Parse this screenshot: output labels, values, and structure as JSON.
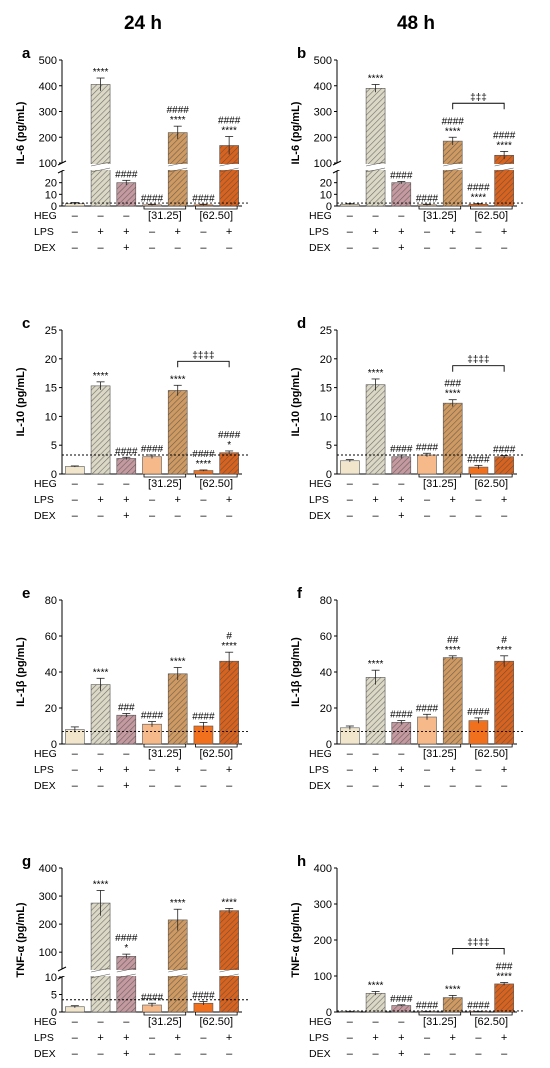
{
  "figure": {
    "col_titles": [
      "24 h",
      "48 h"
    ],
    "row_labels": [
      "HEG",
      "LPS",
      "DEX"
    ],
    "groups": {
      "HEG": [
        "–",
        "–",
        "–",
        "[31.25]",
        "[31.25]",
        "[62.50]",
        "[62.50]"
      ],
      "LPS": [
        "–",
        "+",
        "+",
        "–",
        "+",
        "–",
        "+"
      ],
      "DEX": [
        "–",
        "–",
        "+",
        "–",
        "–",
        "–",
        "–"
      ]
    },
    "heg_labels": [
      "[31.25]",
      "[62.50]"
    ],
    "colors": {
      "ctrl": "#f1e6cc",
      "lps": "#dcd8c6",
      "dex": "#c49aa0",
      "heg31": "#f5b98a",
      "heg31lps": "#cf9a62",
      "heg62": "#f0701e",
      "heg62lps": "#d8631f"
    }
  },
  "chart_data": [
    {
      "panel": "a",
      "type": "bar",
      "ylabel": "IL-6 (pg/mL)",
      "values": [
        2,
        405,
        20,
        1,
        218,
        1,
        168
      ],
      "errors": [
        1,
        25,
        2,
        0.5,
        25,
        0.5,
        35
      ],
      "broken_axis": true,
      "lower_ylim": [
        0,
        30
      ],
      "upper_ylim": [
        100,
        500
      ],
      "lower_ticks": [
        0,
        10,
        20
      ],
      "upper_ticks": [
        100,
        200,
        300,
        400,
        500
      ],
      "reference_line": 2.5,
      "sig": [
        [],
        [
          "****"
        ],
        [
          "####"
        ],
        [
          "####"
        ],
        [
          "####",
          "****"
        ],
        [
          "####"
        ],
        [
          "####",
          "****"
        ]
      ],
      "bracket": null
    },
    {
      "panel": "b",
      "type": "bar",
      "ylabel": "IL-6 (pg/mL)",
      "values": [
        1.5,
        390,
        20,
        1,
        185,
        1.5,
        130
      ],
      "errors": [
        0.5,
        15,
        1,
        0.5,
        15,
        0.5,
        15
      ],
      "broken_axis": true,
      "lower_ylim": [
        0,
        30
      ],
      "upper_ylim": [
        100,
        500
      ],
      "lower_ticks": [
        0,
        10,
        20
      ],
      "upper_ticks": [
        100,
        200,
        300,
        400,
        500
      ],
      "reference_line": 2.5,
      "sig": [
        [],
        [
          "****"
        ],
        [
          "####"
        ],
        [
          "####"
        ],
        [
          "####",
          "****"
        ],
        [
          "####",
          "****"
        ],
        [
          "####",
          "****"
        ]
      ],
      "bracket": {
        "from": 4,
        "to": 6,
        "label": "‡‡‡"
      }
    },
    {
      "panel": "c",
      "type": "bar",
      "ylabel": "IL-10 (pg/mL)",
      "values": [
        1.3,
        15.3,
        2.7,
        3.0,
        14.5,
        0.6,
        3.7
      ],
      "errors": [
        0.1,
        0.7,
        0.2,
        0.3,
        0.9,
        0.1,
        0.3
      ],
      "ylim": [
        0,
        25
      ],
      "ticks": [
        0,
        5,
        10,
        15,
        20,
        25
      ],
      "reference_line": 3.3,
      "sig": [
        [],
        [
          "****"
        ],
        [
          "####"
        ],
        [
          "####"
        ],
        [
          "****"
        ],
        [
          "####",
          "****"
        ],
        [
          "####",
          "*"
        ]
      ],
      "bracket": {
        "from": 4,
        "to": 6,
        "label": "‡‡‡‡"
      }
    },
    {
      "panel": "d",
      "type": "bar",
      "ylabel": "IL-10 (pg/mL)",
      "values": [
        2.3,
        15.5,
        3.0,
        3.3,
        12.3,
        1.2,
        3.0
      ],
      "errors": [
        0.2,
        1.0,
        0.3,
        0.3,
        0.6,
        0.3,
        0.2
      ],
      "ylim": [
        0,
        25
      ],
      "ticks": [
        0,
        5,
        10,
        15,
        20,
        25
      ],
      "reference_line": 3.3,
      "sig": [
        [],
        [
          "****"
        ],
        [
          "####"
        ],
        [
          "####"
        ],
        [
          "###",
          "****"
        ],
        [
          "####"
        ],
        [
          "####"
        ]
      ],
      "bracket": {
        "from": 4,
        "to": 6,
        "label": "‡‡‡‡"
      }
    },
    {
      "panel": "e",
      "type": "bar",
      "ylabel": "IL-1β (pg/mL)",
      "values": [
        8,
        33,
        16,
        11,
        39,
        10,
        46
      ],
      "errors": [
        1.5,
        3.5,
        1,
        1.5,
        3.5,
        2,
        5
      ],
      "ylim": [
        0,
        80
      ],
      "ticks": [
        0,
        20,
        40,
        60,
        80
      ],
      "reference_line": 7,
      "sig": [
        [],
        [
          "****"
        ],
        [
          "###"
        ],
        [
          "####"
        ],
        [
          "****"
        ],
        [
          "####"
        ],
        [
          "#",
          "****"
        ]
      ],
      "bracket": null
    },
    {
      "panel": "f",
      "type": "bar",
      "ylabel": "IL-1β (pg/mL)",
      "values": [
        9,
        37,
        12,
        15,
        48,
        13,
        46
      ],
      "errors": [
        1,
        4,
        1,
        1.5,
        1,
        1.5,
        3
      ],
      "ylim": [
        0,
        80
      ],
      "ticks": [
        0,
        20,
        40,
        60,
        80
      ],
      "reference_line": 7,
      "sig": [
        [],
        [
          "****"
        ],
        [
          "####"
        ],
        [
          "####"
        ],
        [
          "##",
          "****"
        ],
        [
          "####"
        ],
        [
          "#",
          "****"
        ]
      ],
      "bracket": null
    },
    {
      "panel": "g",
      "type": "bar",
      "ylabel": "TNF-α (pg/mL)",
      "values": [
        1.5,
        275,
        85,
        2,
        215,
        2.5,
        248
      ],
      "errors": [
        0.3,
        45,
        8,
        0.5,
        38,
        0.5,
        8
      ],
      "broken_axis": true,
      "lower_ylim": [
        0,
        10
      ],
      "upper_ylim": [
        40,
        400
      ],
      "lower_ticks": [
        0,
        5,
        10
      ],
      "upper_ticks": [
        100,
        200,
        300,
        400
      ],
      "reference_line": 3.5,
      "sig": [
        [],
        [
          "****"
        ],
        [
          "####",
          "*"
        ],
        [
          "####"
        ],
        [
          "****"
        ],
        [
          "####"
        ],
        [
          "****"
        ]
      ],
      "bracket": null
    },
    {
      "panel": "h",
      "type": "bar",
      "ylabel": "TNF-α (pg/mL)",
      "values": [
        0.5,
        52,
        18,
        0.5,
        40,
        0.5,
        78
      ],
      "errors": [
        0.2,
        5,
        2,
        0.2,
        6,
        0.2,
        4
      ],
      "ylim": [
        0,
        400
      ],
      "ticks": [
        0,
        100,
        200,
        300,
        400
      ],
      "reference_line": 3,
      "sig": [
        [],
        [
          "****"
        ],
        [
          "####"
        ],
        [
          "####"
        ],
        [
          "****"
        ],
        [
          "####"
        ],
        [
          "###",
          "****"
        ]
      ],
      "bracket": {
        "from": 4,
        "to": 6,
        "label": "‡‡‡‡"
      }
    }
  ]
}
